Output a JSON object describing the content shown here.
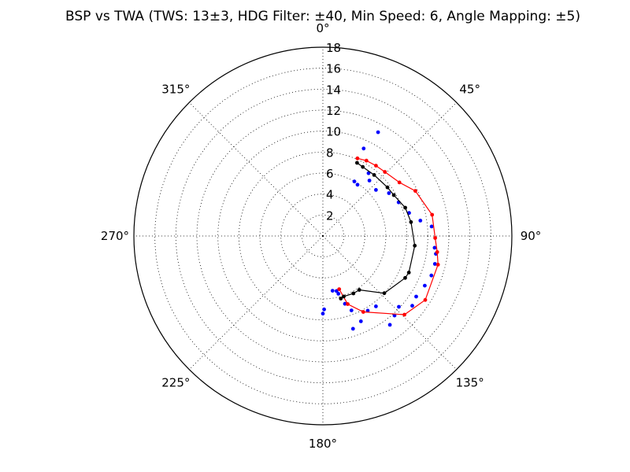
{
  "chart_data": {
    "type": "scatter",
    "subtype": "polar",
    "title": "BSP vs TWA (TWS: 13±3, HDG Filter: ±40, Min Speed: 6, Angle Mapping: ±5)",
    "theta_direction": "clockwise",
    "theta_zero": "top",
    "rlim": [
      0,
      18
    ],
    "r_ticks": [
      "2",
      "4",
      "6",
      "8",
      "10",
      "12",
      "14",
      "16",
      "18"
    ],
    "theta_ticks": [
      {
        "angle": 0,
        "label": "0°"
      },
      {
        "angle": 45,
        "label": "45°"
      },
      {
        "angle": 90,
        "label": "90°"
      },
      {
        "angle": 135,
        "label": "135°"
      },
      {
        "angle": 180,
        "label": "180°"
      },
      {
        "angle": 225,
        "label": "225°"
      },
      {
        "angle": 270,
        "label": "270°"
      },
      {
        "angle": 315,
        "label": "315°"
      }
    ],
    "grid": true,
    "series": [
      {
        "color": "#0000ff",
        "style": "points",
        "points": [
          [
            28,
            11.2
          ],
          [
            25,
            9.2
          ],
          [
            36,
            7.4
          ],
          [
            40,
            6.9
          ],
          [
            34,
            5.9
          ],
          [
            30,
            6.0
          ],
          [
            49,
            6.7
          ],
          [
            57,
            7.5
          ],
          [
            66,
            7.9
          ],
          [
            75,
            8.5
          ],
          [
            81,
            9.4
          ],
          [
            85,
            10.4
          ],
          [
            96,
            10.7
          ],
          [
            99,
            10.9
          ],
          [
            104,
            11.0
          ],
          [
            110,
            11.0
          ],
          [
            116,
            10.8
          ],
          [
            123,
            10.6
          ],
          [
            128,
            10.8
          ],
          [
            133,
            9.9
          ],
          [
            138,
            10.2
          ],
          [
            143,
            10.6
          ],
          [
            143,
            8.4
          ],
          [
            149,
            8.3
          ],
          [
            156,
            8.9
          ],
          [
            162,
            9.3
          ],
          [
            159,
            7.6
          ],
          [
            162,
            6.8
          ],
          [
            165,
            5.7
          ],
          [
            166,
            5.4
          ],
          [
            170,
            5.3
          ],
          [
            179,
            7.0
          ],
          [
            180,
            7.4
          ]
        ]
      },
      {
        "color": "#ff0000",
        "style": "line",
        "points": [
          [
            24,
            8.1
          ],
          [
            30,
            8.3
          ],
          [
            37,
            8.4
          ],
          [
            44,
            8.5
          ],
          [
            55,
            8.9
          ],
          [
            64,
            9.8
          ],
          [
            79,
            10.6
          ],
          [
            91,
            10.7
          ],
          [
            98,
            11.0
          ],
          [
            104,
            11.3
          ],
          [
            122,
            11.5
          ],
          [
            134,
            10.8
          ],
          [
            152,
            8.2
          ],
          [
            160,
            6.9
          ],
          [
            163,
            5.3
          ]
        ]
      },
      {
        "color": "#000000",
        "style": "line",
        "points": [
          [
            25,
            7.7
          ],
          [
            30,
            7.6
          ],
          [
            40,
            7.6
          ],
          [
            53,
            7.7
          ],
          [
            60,
            7.8
          ],
          [
            71,
            8.3
          ],
          [
            81,
            8.5
          ],
          [
            96,
            8.8
          ],
          [
            113,
            8.9
          ],
          [
            117,
            8.8
          ],
          [
            133,
            8.0
          ],
          [
            146,
            6.2
          ],
          [
            152,
            6.2
          ],
          [
            161,
            6.1
          ],
          [
            164,
            6.2
          ]
        ]
      }
    ]
  }
}
